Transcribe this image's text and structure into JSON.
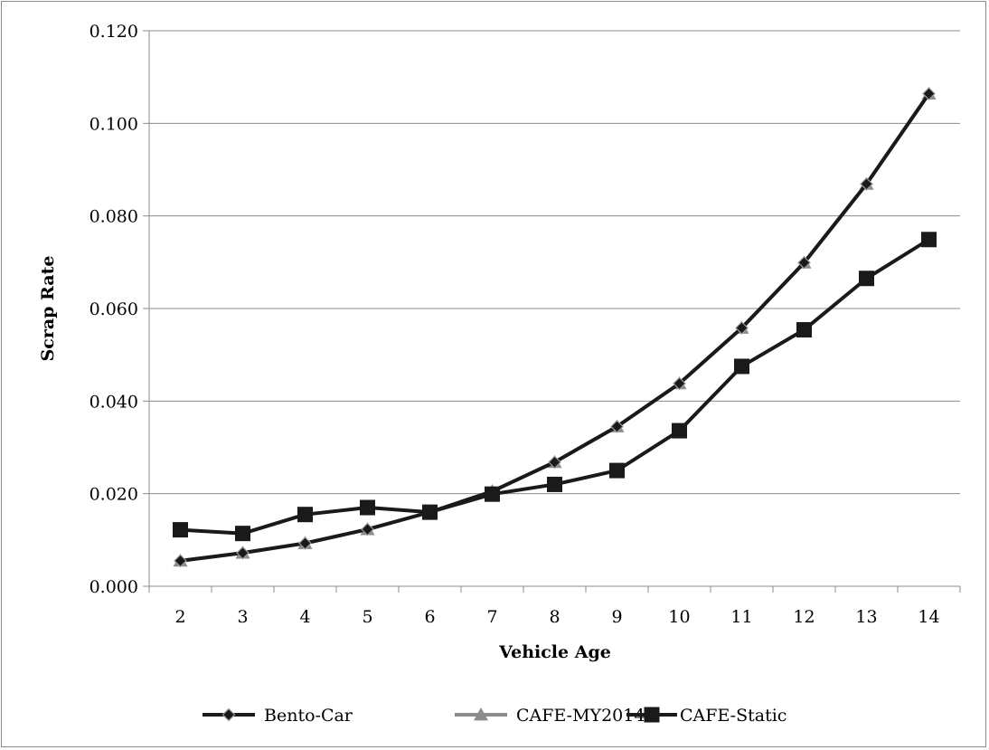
{
  "chart_data": {
    "type": "line",
    "title": "",
    "xlabel": "Vehicle Age",
    "ylabel": "Scrap Rate",
    "x": [
      2,
      3,
      4,
      5,
      6,
      7,
      8,
      9,
      10,
      11,
      12,
      13,
      14
    ],
    "x_tick_labels": [
      "2",
      "3",
      "4",
      "5",
      "6",
      "7",
      "8",
      "9",
      "10",
      "11",
      "12",
      "13",
      "14"
    ],
    "y_tick_labels": [
      "0.000",
      "0.020",
      "0.040",
      "0.060",
      "0.080",
      "0.100",
      "0.120"
    ],
    "ylim": [
      0,
      0.12
    ],
    "y_tick_step": 0.02,
    "grid": "horizontal",
    "legend_position": "bottom",
    "series": [
      {
        "name": "Bento-Car",
        "marker": "diamond",
        "color": "#1a1a1a",
        "values": [
          0.0055,
          0.0072,
          0.0093,
          0.0123,
          0.016,
          0.0205,
          0.0268,
          0.0345,
          0.0438,
          0.0558,
          0.0699,
          0.0869,
          0.1064
        ]
      },
      {
        "name": "CAFE-MY2014",
        "marker": "triangle",
        "color": "#8c8c8c",
        "values": [
          0.0055,
          0.0072,
          0.0093,
          0.0123,
          0.016,
          0.0205,
          0.0268,
          0.0345,
          0.0438,
          0.0558,
          0.0699,
          0.0869,
          0.1064
        ]
      },
      {
        "name": "CAFE-Static",
        "marker": "square",
        "color": "#1a1a1a",
        "values": [
          0.0122,
          0.0114,
          0.0155,
          0.017,
          0.016,
          0.0199,
          0.022,
          0.025,
          0.0336,
          0.0475,
          0.0554,
          0.0665,
          0.0749
        ]
      }
    ]
  }
}
